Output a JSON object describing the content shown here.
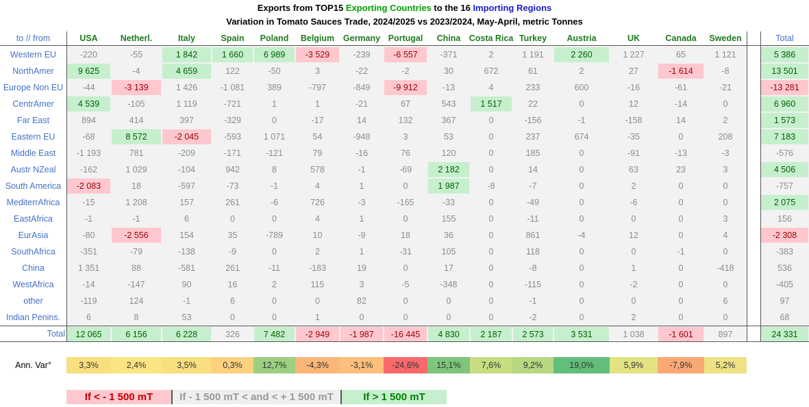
{
  "title": [
    {
      "text": "Exports from TOP15 ",
      "color": "#000000"
    },
    {
      "text": "Exporting Countries",
      "color": "#00a000"
    },
    {
      "text": " to the 16 ",
      "color": "#000000"
    },
    {
      "text": "Importing Regions",
      "color": "#1a1acc"
    }
  ],
  "subtitle": "Variation in Tomato Sauces Trade, 2024/2025 vs 2023/2024, May-April, metric Tonnes",
  "table": {
    "corner": "to // from",
    "columns": [
      "USA",
      "Netherl.",
      "Italy",
      "Spain",
      "Poland",
      "Belgium",
      "Germany",
      "Portugal",
      "China",
      "Costa Rica",
      "Turkey",
      "Austria",
      "UK",
      "Canada",
      "Sweden"
    ],
    "total_header": "Total",
    "rows": [
      {
        "label": "Western EU",
        "cells": [
          "-220",
          "-55",
          "1 842",
          "1 660",
          "6 989",
          "-3 529",
          "-239",
          "-6 557",
          "-371",
          "2",
          "1 191",
          "2 260",
          "1 227",
          "65",
          "1 121"
        ],
        "total": "5 386"
      },
      {
        "label": "NorthAmer",
        "cells": [
          "9 625",
          "-4",
          "4 659",
          "122",
          "-50",
          "3",
          "-22",
          "-2",
          "30",
          "672",
          "61",
          "2",
          "27",
          "-1 614",
          "-8"
        ],
        "total": "13 501"
      },
      {
        "label": "Europe Non EU",
        "cells": [
          "-44",
          "-3 139",
          "1 426",
          "-1 081",
          "389",
          "-797",
          "-849",
          "-9 912",
          "-13",
          "4",
          "233",
          "600",
          "-16",
          "-61",
          "-21"
        ],
        "total": "-13 281"
      },
      {
        "label": "CentrAmer",
        "cells": [
          "4 539",
          "-105",
          "1 119",
          "-721",
          "1",
          "1",
          "-21",
          "67",
          "543",
          "1 517",
          "22",
          "0",
          "12",
          "-14",
          "0"
        ],
        "total": "6 960"
      },
      {
        "label": "Far East",
        "cells": [
          "894",
          "414",
          "397",
          "-329",
          "0",
          "-17",
          "14",
          "132",
          "367",
          "0",
          "-156",
          "-1",
          "-158",
          "14",
          "2"
        ],
        "total": "1 573"
      },
      {
        "label": "Eastern EU",
        "cells": [
          "-68",
          "8 572",
          "-2 045",
          "-593",
          "1 071",
          "54",
          "-948",
          "3",
          "53",
          "0",
          "237",
          "674",
          "-35",
          "0",
          "208"
        ],
        "total": "7 183"
      },
      {
        "label": "Middle East",
        "cells": [
          "-1 193",
          "781",
          "-209",
          "-171",
          "-121",
          "79",
          "-16",
          "76",
          "120",
          "0",
          "185",
          "0",
          "-91",
          "-13",
          "-3"
        ],
        "total": "-576"
      },
      {
        "label": "Austr NZeal",
        "cells": [
          "-162",
          "1 029",
          "-104",
          "942",
          "8",
          "578",
          "-1",
          "-69",
          "2 182",
          "0",
          "14",
          "0",
          "63",
          "23",
          "3"
        ],
        "total": "4 506"
      },
      {
        "label": "South America",
        "cells": [
          "-2 083",
          "18",
          "-597",
          "-73",
          "-1",
          "4",
          "1",
          "0",
          "1 987",
          "-8",
          "-7",
          "0",
          "2",
          "0",
          "0"
        ],
        "total": "-757"
      },
      {
        "label": "MediterrAfrica",
        "cells": [
          "-15",
          "1 208",
          "157",
          "261",
          "-6",
          "726",
          "-3",
          "-165",
          "-33",
          "0",
          "-49",
          "0",
          "-6",
          "0",
          "0"
        ],
        "total": "2 075"
      },
      {
        "label": "EastAfrica",
        "cells": [
          "-1",
          "-1",
          "6",
          "0",
          "0",
          "4",
          "1",
          "0",
          "155",
          "0",
          "-11",
          "0",
          "0",
          "0",
          "3"
        ],
        "total": "156"
      },
      {
        "label": "EurAsia",
        "cells": [
          "-80",
          "-2 556",
          "154",
          "35",
          "-789",
          "10",
          "-9",
          "18",
          "36",
          "0",
          "861",
          "-4",
          "12",
          "0",
          "4"
        ],
        "total": "-2 308"
      },
      {
        "label": "SouthAfrica",
        "cells": [
          "-351",
          "-79",
          "-138",
          "-9",
          "0",
          "2",
          "1",
          "-31",
          "105",
          "0",
          "118",
          "0",
          "0",
          "-1",
          "0"
        ],
        "total": "-383"
      },
      {
        "label": "China",
        "cells": [
          "1 351",
          "88",
          "-581",
          "261",
          "-11",
          "-183",
          "19",
          "0",
          "17",
          "0",
          "-8",
          "0",
          "1",
          "0",
          "-418"
        ],
        "total": "536"
      },
      {
        "label": "WestAfrica",
        "cells": [
          "-14",
          "-147",
          "90",
          "16",
          "2",
          "115",
          "3",
          "-5",
          "-348",
          "0",
          "-115",
          "0",
          "-2",
          "0",
          "0"
        ],
        "total": "-405"
      },
      {
        "label": "other",
        "cells": [
          "-119",
          "124",
          "-1",
          "6",
          "0",
          "0",
          "82",
          "0",
          "0",
          "0",
          "-1",
          "0",
          "0",
          "0",
          "6"
        ],
        "total": "97"
      },
      {
        "label": "Indian Penins.",
        "cells": [
          "6",
          "8",
          "53",
          "0",
          "0",
          "1",
          "0",
          "0",
          "0",
          "0",
          "-2",
          "0",
          "2",
          "0",
          "0"
        ],
        "total": "68"
      }
    ],
    "totals": {
      "label": "Total",
      "cells": [
        "12 065",
        "6 156",
        "6 228",
        "326",
        "7 482",
        "-2 949",
        "-1 987",
        "-16 445",
        "4 830",
        "2 187",
        "2 573",
        "3 531",
        "1 038",
        "-1 601",
        "897"
      ],
      "total": "24 331"
    }
  },
  "annual_variation": {
    "label": "Ann. Var°",
    "values": [
      "3,3%",
      "2,4%",
      "3,5%",
      "0,3%",
      "12,7%",
      "-4,3%",
      "-3,1%",
      "-24,6%",
      "15,1%",
      "7,6%",
      "9,2%",
      "19,0%",
      "5,9%",
      "-7,9%",
      "5,2%"
    ],
    "colors": [
      "#f9e07f",
      "#fbe583",
      "#f8df80",
      "#fdd17f",
      "#9ccf7f",
      "#fbb77a",
      "#fcc07c",
      "#f8696b",
      "#7fc57d",
      "#c6dd82",
      "#b7d881",
      "#63be7b",
      "#e4e383",
      "#fba877",
      "#eee284"
    ]
  },
  "legend": {
    "low": {
      "label": "If < - 1 500 mT",
      "value": -1500,
      "color": "#ffc7ce",
      "text_color": "#c00000"
    },
    "mid": {
      "label": "If - 1 500 mT < and < + 1 500 mT",
      "color": "#efefef",
      "text_color": "#999999"
    },
    "high": {
      "label": "If > 1 500 mT",
      "value": 1500,
      "color": "#c6efce",
      "text_color": "#008000"
    }
  }
}
